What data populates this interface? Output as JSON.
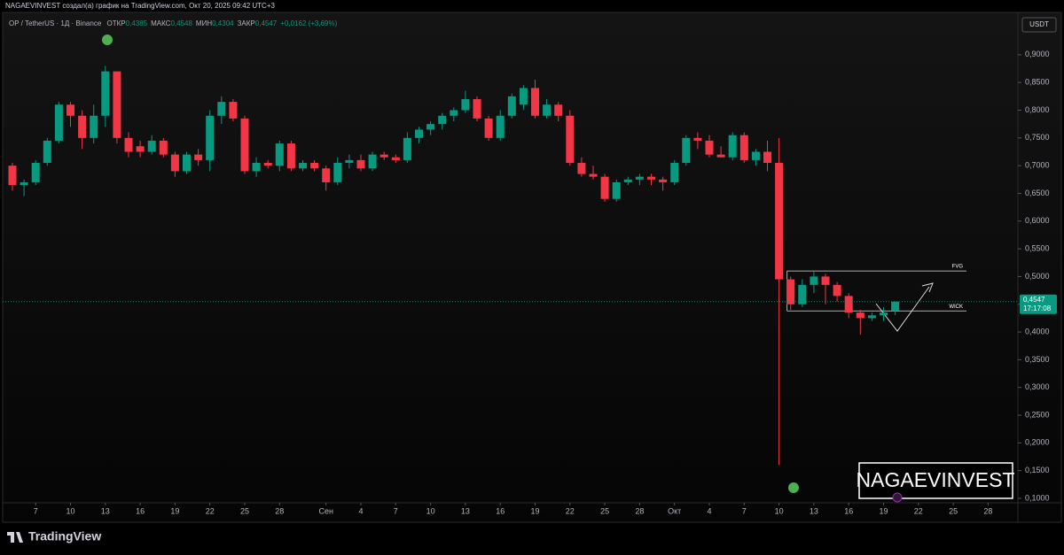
{
  "header": {
    "credit": "NAGAEVINVEST создал(а) график на TradingView.com, Окт 20, 2025 09:42 UTC+3",
    "symbol": "OP / TetherUS · 1Д · Binance",
    "ohlc": [
      {
        "label": "ОТКР",
        "value": "0,4385"
      },
      {
        "label": "МАКС",
        "value": "0,4548"
      },
      {
        "label": "МИН",
        "value": "0,4304"
      },
      {
        "label": "ЗАКР",
        "value": "0,4547"
      }
    ],
    "change": "+0,0162 (+3,69%)",
    "currency": "USDT",
    "watermark": "NAGAEVINVEST",
    "brand": "TradingView"
  },
  "chart_data": {
    "type": "candlestick",
    "up_color": "#089981",
    "down_color": "#f23645",
    "x": [
      "2025-08-05",
      "2025-08-06",
      "2025-08-07",
      "2025-08-08",
      "2025-08-09",
      "2025-08-10",
      "2025-08-11",
      "2025-08-12",
      "2025-08-13",
      "2025-08-14",
      "2025-08-15",
      "2025-08-16",
      "2025-08-17",
      "2025-08-18",
      "2025-08-19",
      "2025-08-20",
      "2025-08-21",
      "2025-08-22",
      "2025-08-23",
      "2025-08-24",
      "2025-08-25",
      "2025-08-26",
      "2025-08-27",
      "2025-08-28",
      "2025-08-29",
      "2025-08-30",
      "2025-08-31",
      "2025-09-01",
      "2025-09-02",
      "2025-09-03",
      "2025-09-04",
      "2025-09-05",
      "2025-09-06",
      "2025-09-07",
      "2025-09-08",
      "2025-09-09",
      "2025-09-10",
      "2025-09-11",
      "2025-09-12",
      "2025-09-13",
      "2025-09-14",
      "2025-09-15",
      "2025-09-16",
      "2025-09-17",
      "2025-09-18",
      "2025-09-19",
      "2025-09-20",
      "2025-09-21",
      "2025-09-22",
      "2025-09-23",
      "2025-09-24",
      "2025-09-25",
      "2025-09-26",
      "2025-09-27",
      "2025-09-28",
      "2025-09-29",
      "2025-09-30",
      "2025-10-01",
      "2025-10-02",
      "2025-10-03",
      "2025-10-04",
      "2025-10-05",
      "2025-10-06",
      "2025-10-07",
      "2025-10-08",
      "2025-10-09",
      "2025-10-10",
      "2025-10-11",
      "2025-10-12",
      "2025-10-13",
      "2025-10-14",
      "2025-10-15",
      "2025-10-16",
      "2025-10-17",
      "2025-10-18",
      "2025-10-19",
      "2025-10-20"
    ],
    "open": [
      0.7,
      0.665,
      0.67,
      0.705,
      0.745,
      0.81,
      0.79,
      0.75,
      0.79,
      0.87,
      0.75,
      0.735,
      0.725,
      0.745,
      0.72,
      0.69,
      0.72,
      0.71,
      0.79,
      0.815,
      0.785,
      0.69,
      0.705,
      0.7,
      0.74,
      0.695,
      0.705,
      0.695,
      0.67,
      0.705,
      0.71,
      0.695,
      0.72,
      0.715,
      0.71,
      0.75,
      0.765,
      0.775,
      0.79,
      0.8,
      0.82,
      0.785,
      0.75,
      0.79,
      0.81,
      0.84,
      0.79,
      0.81,
      0.79,
      0.705,
      0.685,
      0.68,
      0.64,
      0.67,
      0.675,
      0.68,
      0.675,
      0.67,
      0.705,
      0.75,
      0.745,
      0.72,
      0.715,
      0.755,
      0.71,
      0.725,
      0.705,
      0.495,
      0.45,
      0.485,
      0.5,
      0.485,
      0.465,
      0.435,
      0.425,
      0.43,
      0.4385
    ],
    "high": [
      0.705,
      0.675,
      0.71,
      0.75,
      0.815,
      0.815,
      0.8,
      0.81,
      0.88,
      0.87,
      0.76,
      0.745,
      0.755,
      0.75,
      0.725,
      0.725,
      0.73,
      0.8,
      0.825,
      0.82,
      0.79,
      0.715,
      0.71,
      0.745,
      0.745,
      0.71,
      0.71,
      0.7,
      0.715,
      0.72,
      0.72,
      0.725,
      0.725,
      0.72,
      0.76,
      0.77,
      0.78,
      0.795,
      0.805,
      0.835,
      0.825,
      0.79,
      0.8,
      0.83,
      0.845,
      0.855,
      0.82,
      0.815,
      0.8,
      0.715,
      0.7,
      0.685,
      0.675,
      0.68,
      0.685,
      0.685,
      0.68,
      0.71,
      0.755,
      0.76,
      0.755,
      0.735,
      0.76,
      0.76,
      0.73,
      0.745,
      0.75,
      0.5,
      0.495,
      0.51,
      0.505,
      0.49,
      0.47,
      0.44,
      0.435,
      0.445,
      0.4548
    ],
    "low": [
      0.655,
      0.645,
      0.665,
      0.7,
      0.74,
      0.77,
      0.73,
      0.74,
      0.77,
      0.74,
      0.715,
      0.715,
      0.72,
      0.715,
      0.68,
      0.685,
      0.7,
      0.69,
      0.775,
      0.78,
      0.685,
      0.68,
      0.695,
      0.69,
      0.69,
      0.69,
      0.69,
      0.655,
      0.665,
      0.695,
      0.69,
      0.69,
      0.71,
      0.705,
      0.705,
      0.74,
      0.755,
      0.765,
      0.78,
      0.795,
      0.78,
      0.745,
      0.745,
      0.785,
      0.8,
      0.785,
      0.785,
      0.78,
      0.7,
      0.68,
      0.675,
      0.635,
      0.635,
      0.665,
      0.665,
      0.665,
      0.655,
      0.665,
      0.7,
      0.73,
      0.715,
      0.715,
      0.71,
      0.705,
      0.7,
      0.69,
      0.16,
      0.44,
      0.445,
      0.47,
      0.45,
      0.455,
      0.425,
      0.395,
      0.42,
      0.42,
      0.4304
    ],
    "close": [
      0.665,
      0.67,
      0.705,
      0.745,
      0.81,
      0.79,
      0.75,
      0.79,
      0.87,
      0.75,
      0.725,
      0.725,
      0.745,
      0.72,
      0.69,
      0.72,
      0.71,
      0.79,
      0.815,
      0.785,
      0.69,
      0.705,
      0.7,
      0.74,
      0.695,
      0.705,
      0.695,
      0.67,
      0.705,
      0.71,
      0.695,
      0.72,
      0.715,
      0.71,
      0.75,
      0.765,
      0.775,
      0.79,
      0.8,
      0.82,
      0.785,
      0.75,
      0.79,
      0.825,
      0.84,
      0.79,
      0.81,
      0.79,
      0.705,
      0.685,
      0.68,
      0.64,
      0.67,
      0.675,
      0.68,
      0.675,
      0.67,
      0.705,
      0.75,
      0.745,
      0.72,
      0.715,
      0.755,
      0.71,
      0.725,
      0.705,
      0.495,
      0.45,
      0.485,
      0.5,
      0.485,
      0.465,
      0.435,
      0.425,
      0.43,
      0.435,
      0.4547
    ],
    "ylim": [
      0.092,
      0.97
    ],
    "yticks": [
      {
        "value": 0.1,
        "label": "0,1000"
      },
      {
        "value": 0.15,
        "label": "0,1500"
      },
      {
        "value": 0.2,
        "label": "0,2000"
      },
      {
        "value": 0.25,
        "label": "0,2500"
      },
      {
        "value": 0.3,
        "label": "0,3000"
      },
      {
        "value": 0.35,
        "label": "0,3500"
      },
      {
        "value": 0.4,
        "label": "0,4000"
      },
      {
        "value": 0.45,
        "label": "0,4500"
      },
      {
        "value": 0.5,
        "label": "0,5000"
      },
      {
        "value": 0.55,
        "label": "0,5500"
      },
      {
        "value": 0.6,
        "label": "0,6000"
      },
      {
        "value": 0.65,
        "label": "0,6500"
      },
      {
        "value": 0.7,
        "label": "0,7000"
      },
      {
        "value": 0.75,
        "label": "0,7500"
      },
      {
        "value": 0.8,
        "label": "0,8000"
      },
      {
        "value": 0.85,
        "label": "0,8500"
      },
      {
        "value": 0.9,
        "label": "0,9000"
      }
    ],
    "xticks": [
      {
        "value": "2025-08-07",
        "label": "7"
      },
      {
        "value": "2025-08-10",
        "label": "10"
      },
      {
        "value": "2025-08-13",
        "label": "13"
      },
      {
        "value": "2025-08-16",
        "label": "16"
      },
      {
        "value": "2025-08-19",
        "label": "19"
      },
      {
        "value": "2025-08-22",
        "label": "22"
      },
      {
        "value": "2025-08-25",
        "label": "25"
      },
      {
        "value": "2025-08-28",
        "label": "28"
      },
      {
        "value": "2025-09-01",
        "label": "Сен"
      },
      {
        "value": "2025-09-04",
        "label": "4"
      },
      {
        "value": "2025-09-07",
        "label": "7"
      },
      {
        "value": "2025-09-10",
        "label": "10"
      },
      {
        "value": "2025-09-13",
        "label": "13"
      },
      {
        "value": "2025-09-16",
        "label": "16"
      },
      {
        "value": "2025-09-19",
        "label": "19"
      },
      {
        "value": "2025-09-22",
        "label": "22"
      },
      {
        "value": "2025-09-25",
        "label": "25"
      },
      {
        "value": "2025-09-28",
        "label": "28"
      },
      {
        "value": "2025-10-01",
        "label": "Окт"
      },
      {
        "value": "2025-10-04",
        "label": "4"
      },
      {
        "value": "2025-10-07",
        "label": "7"
      },
      {
        "value": "2025-10-10",
        "label": "10"
      },
      {
        "value": "2025-10-13",
        "label": "13"
      },
      {
        "value": "2025-10-16",
        "label": "16"
      },
      {
        "value": "2025-10-19",
        "label": "19"
      },
      {
        "value": "2025-10-22",
        "label": "22"
      },
      {
        "value": "2025-10-25",
        "label": "25"
      },
      {
        "value": "2025-10-28",
        "label": "28"
      }
    ],
    "last_price": {
      "value": 0.4547,
      "label": "0,4547",
      "countdown": "17:17:08"
    },
    "levels": [
      {
        "label": "FVG",
        "value": 0.51
      },
      {
        "label": "WICK",
        "value": 0.438
      }
    ]
  }
}
